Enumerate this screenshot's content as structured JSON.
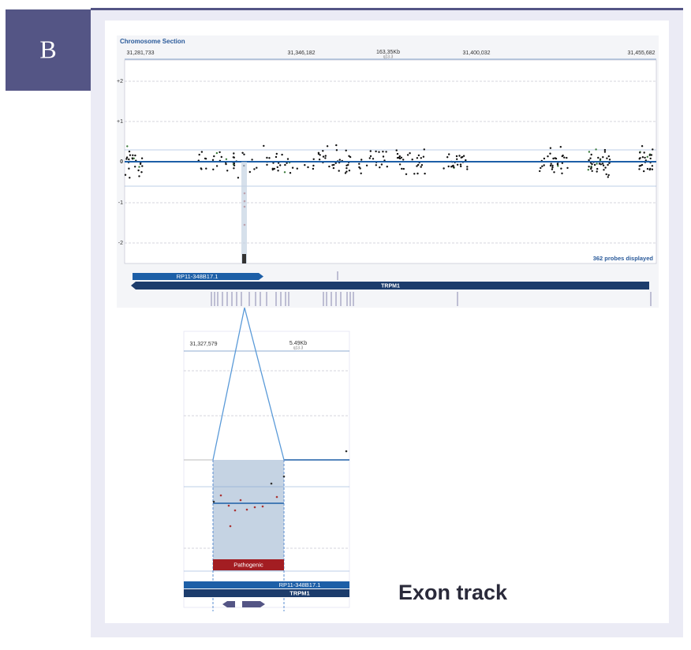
{
  "panel": {
    "label": "B"
  },
  "overview": {
    "title": "Chromosome Section",
    "positions": [
      "31,281,733",
      "31,346,182",
      "163,35Kb",
      "31,400,032",
      "31,455,682"
    ],
    "band": "q13.3",
    "y_labels": [
      "+2",
      "+1",
      "0",
      "-1",
      "-2"
    ],
    "probes_note": "362 probes displayed",
    "tracks": [
      "RP11-348B17.1",
      "TRPM1"
    ]
  },
  "zoom": {
    "positions": [
      "31,327,579",
      "5.49Kb"
    ],
    "band": "q13.3",
    "classification": "Pathogenic",
    "tracks": [
      "RP11-348B17.1",
      "TRPM1"
    ]
  },
  "caption": "Exon track"
}
